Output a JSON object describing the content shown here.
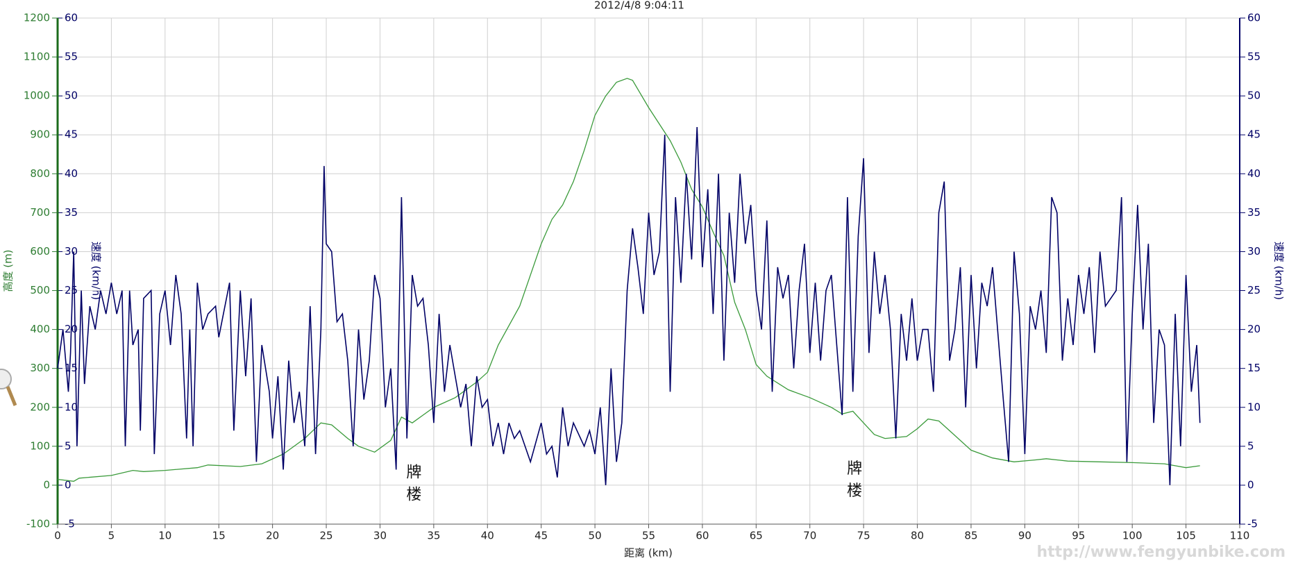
{
  "chart_data": {
    "type": "line",
    "title": "2012/4/8 9:04:11",
    "x_label": "距离 (km)",
    "y_label": "高度 (m)",
    "y2_label": "速度 (km/h)",
    "watermark": "http://www.fengyunbike.com",
    "xlim": [
      0,
      110
    ],
    "xticks": [
      0,
      5,
      10,
      15,
      20,
      25,
      30,
      35,
      40,
      45,
      50,
      55,
      60,
      65,
      70,
      75,
      80,
      85,
      90,
      95,
      100,
      105,
      110
    ],
    "ylim": [
      -100,
      1200
    ],
    "yticks": [
      -100,
      0,
      100,
      200,
      300,
      400,
      500,
      600,
      700,
      800,
      900,
      1000,
      1100,
      1200
    ],
    "y2lim": [
      -5,
      60
    ],
    "y2ticks": [
      -5,
      0,
      5,
      10,
      15,
      20,
      25,
      30,
      35,
      40,
      45,
      50,
      55,
      60
    ],
    "grid": true,
    "annotations": [
      {
        "text": "牌楼",
        "x": 33,
        "y": 55
      },
      {
        "text": "牌楼",
        "x": 74,
        "y": 65
      }
    ],
    "series": [
      {
        "color": "#3a9a3a",
        "x": [
          0,
          1.5,
          2,
          5,
          7,
          8,
          10,
          13,
          14,
          17,
          19,
          21,
          23,
          24.5,
          25.5,
          27,
          28,
          29.5,
          31,
          32,
          33,
          34,
          35,
          37,
          39,
          40,
          41,
          43,
          45,
          46,
          47,
          48,
          49,
          50,
          51,
          52,
          53,
          53.5,
          55,
          57,
          58,
          59,
          60,
          61,
          62,
          63,
          64,
          65,
          66,
          68,
          70,
          72,
          73,
          74,
          75,
          76,
          77,
          79,
          80,
          81,
          82,
          83,
          85,
          87,
          89,
          91,
          92,
          94,
          97,
          100,
          103,
          104,
          105,
          106.3
        ],
        "values": [
          15,
          10,
          18,
          25,
          38,
          35,
          38,
          45,
          52,
          48,
          55,
          80,
          120,
          160,
          155,
          120,
          100,
          85,
          115,
          175,
          160,
          180,
          200,
          225,
          265,
          290,
          360,
          460,
          620,
          683,
          720,
          780,
          860,
          950,
          1000,
          1035,
          1045,
          1040,
          970,
          885,
          830,
          760,
          715,
          650,
          590,
          470,
          400,
          310,
          280,
          245,
          225,
          200,
          183,
          190,
          160,
          130,
          120,
          125,
          145,
          170,
          165,
          140,
          90,
          70,
          60,
          65,
          68,
          62,
          60,
          58,
          55,
          50,
          45,
          50
        ]
      },
      {
        "color": "#000066",
        "axis": "y2",
        "x": [
          0,
          0.5,
          1,
          1.2,
          1.5,
          1.8,
          2.2,
          2.5,
          3,
          3.5,
          4,
          4.5,
          5,
          5.5,
          6,
          6.3,
          6.7,
          7,
          7.5,
          7.7,
          8,
          8.7,
          9,
          9.5,
          10,
          10.5,
          11,
          11.5,
          12,
          12.3,
          12.6,
          13,
          13.5,
          14,
          14.7,
          15,
          16,
          16.4,
          17,
          17.5,
          18,
          18.5,
          19,
          19.7,
          20,
          20.5,
          21,
          21.5,
          22,
          22.5,
          23,
          23.5,
          24,
          24.5,
          24.8,
          25,
          25.5,
          26,
          26.5,
          27,
          27.5,
          28,
          28.5,
          29,
          29.5,
          30,
          30.5,
          31,
          31.5,
          32,
          32.5,
          33,
          33.5,
          34,
          34.5,
          35,
          35.5,
          36,
          36.5,
          37,
          37.5,
          38,
          38.5,
          39,
          39.5,
          40,
          40.5,
          41,
          41.5,
          42,
          42.5,
          43,
          44,
          45,
          45.5,
          46,
          46.5,
          47,
          47.5,
          48,
          49,
          49.5,
          50,
          50.5,
          51,
          51.5,
          52,
          52.5,
          53,
          53.5,
          54,
          54.5,
          55,
          55.5,
          56,
          56.5,
          57,
          57.5,
          58,
          58.5,
          59,
          59.5,
          60,
          60.5,
          61,
          61.5,
          62,
          62.5,
          63,
          63.5,
          64,
          64.5,
          65,
          65.5,
          66,
          66.5,
          67,
          67.5,
          68,
          68.5,
          69,
          69.5,
          70,
          70.5,
          71,
          71.5,
          72,
          73,
          73.5,
          74,
          74.5,
          75,
          75.5,
          76,
          76.5,
          77,
          77.5,
          78,
          78.5,
          79,
          79.5,
          80,
          80.5,
          81,
          81.5,
          82,
          82.5,
          83,
          83.5,
          84,
          84.5,
          85,
          85.5,
          86,
          86.5,
          87,
          88,
          88.5,
          89,
          89.5,
          90,
          90.5,
          91,
          91.5,
          92,
          92.5,
          93,
          93.5,
          94,
          94.5,
          95,
          95.5,
          96,
          96.5,
          97,
          97.5,
          98,
          98.5,
          99,
          99.5,
          100,
          100.5,
          101,
          101.5,
          102,
          102.5,
          103,
          103.5,
          104,
          104.5,
          105,
          105.5,
          106,
          106.3
        ],
        "values": [
          15,
          20,
          12,
          17,
          30,
          5,
          25,
          13,
          23,
          20,
          25,
          22,
          26,
          22,
          25,
          5,
          25,
          18,
          20,
          7,
          24,
          25,
          4,
          22,
          25,
          18,
          27,
          22,
          6,
          20,
          5,
          26,
          20,
          22,
          23,
          19,
          26,
          7,
          25,
          14,
          24,
          3,
          18,
          12,
          6,
          14,
          2,
          16,
          8,
          12,
          5,
          23,
          4,
          20,
          41,
          31,
          30,
          21,
          22,
          16,
          5,
          20,
          11,
          16,
          27,
          24,
          10,
          15,
          2,
          37,
          6,
          27,
          23,
          24,
          18,
          8,
          22,
          12,
          18,
          14,
          10,
          13,
          5,
          14,
          10,
          11,
          5,
          8,
          4,
          8,
          6,
          7,
          3,
          8,
          4,
          5,
          1,
          10,
          5,
          8,
          5,
          7,
          4,
          10,
          0,
          15,
          3,
          8,
          25,
          33,
          28,
          22,
          35,
          27,
          30,
          45,
          12,
          37,
          26,
          40,
          29,
          46,
          28,
          38,
          22,
          40,
          16,
          35,
          26,
          40,
          31,
          36,
          25,
          20,
          34,
          12,
          28,
          24,
          27,
          15,
          25,
          31,
          17,
          26,
          16,
          25,
          27,
          9,
          37,
          12,
          32,
          42,
          17,
          30,
          22,
          27,
          20,
          6,
          22,
          16,
          24,
          16,
          20,
          20,
          12,
          35,
          39,
          16,
          20,
          28,
          10,
          27,
          15,
          26,
          23,
          28,
          11,
          3,
          30,
          22,
          4,
          23,
          20,
          25,
          17,
          37,
          35,
          16,
          24,
          18,
          27,
          22,
          28,
          17,
          30,
          23,
          24,
          25,
          37,
          3,
          22,
          36,
          20,
          31,
          8,
          20,
          18,
          0,
          22,
          5,
          27,
          12,
          18,
          8
        ]
      }
    ]
  }
}
